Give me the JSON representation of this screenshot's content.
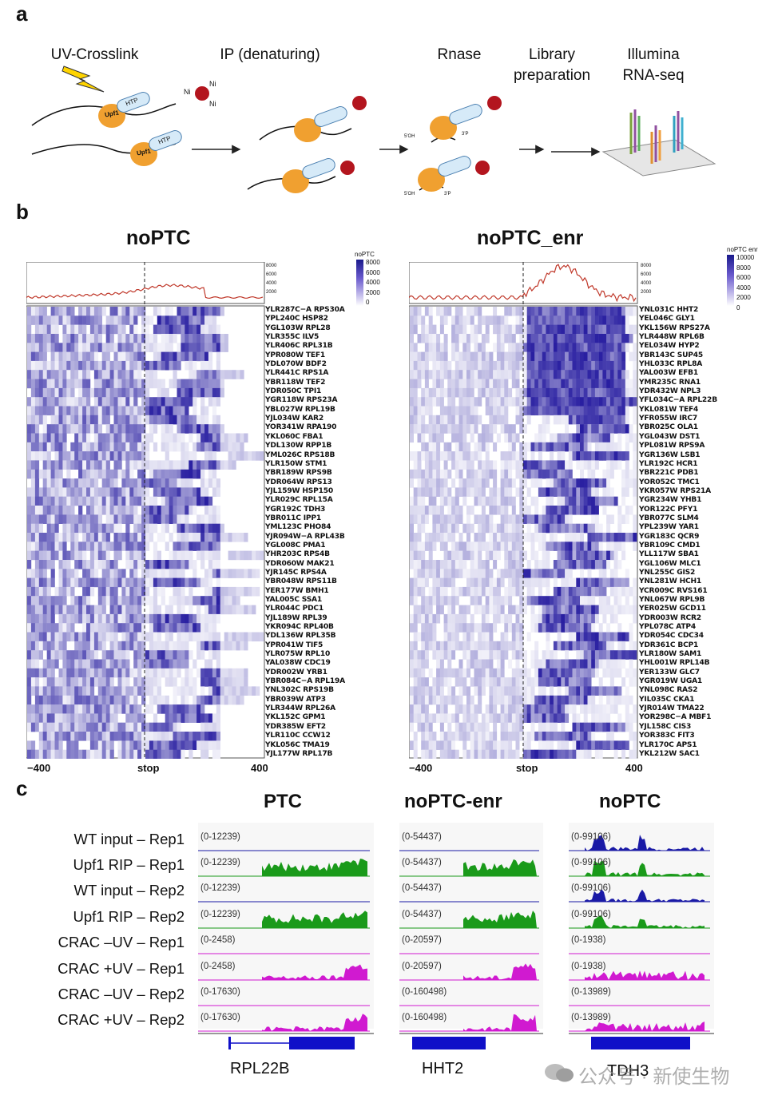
{
  "panels": {
    "a": "a",
    "b": "b",
    "c": "c"
  },
  "panel_a": {
    "steps": [
      "UV-Crosslink",
      "IP (denaturing)",
      "Rnase",
      "Library preparation",
      "Illumina RNA-seq"
    ],
    "labels": {
      "htp": "HTP",
      "upf1": "Upf1",
      "ni": "Ni",
      "oh": "5'OH",
      "p": "3'P"
    }
  },
  "panel_b": {
    "left": {
      "title": "noPTC",
      "legend_title": "noPTC",
      "legend_ticks": [
        "8000",
        "6000",
        "4000",
        "2000",
        "0"
      ],
      "profile_ticks": [
        "8000",
        "6000",
        "4000",
        "2000"
      ],
      "genes": [
        "YLR287C−A RPS30A",
        "YPL240C HSP82",
        "YGL103W RPL28",
        "YLR355C ILV5",
        "YLR406C RPL31B",
        "YPR080W TEF1",
        "YDL070W BDF2",
        "YLR441C RPS1A",
        "YBR118W TEF2",
        "YDR050C TPI1",
        "YGR118W RPS23A",
        "YBL027W RPL19B",
        "YJL034W KAR2",
        "YOR341W RPA190",
        "YKL060C FBA1",
        "YDL130W RPP1B",
        "YML026C RPS18B",
        "YLR150W STM1",
        "YBR189W RPS9B",
        "YDR064W RPS13",
        "YJL159W HSP150",
        "YLR029C RPL15A",
        "YGR192C TDH3",
        "YBR011C IPP1",
        "YML123C PHO84",
        "YJR094W−A RPL43B",
        "YGL008C PMA1",
        "YHR203C RPS4B",
        "YDR060W MAK21",
        "YJR145C RPS4A",
        "YBR048W RPS11B",
        "YER177W BMH1",
        "YAL005C SSA1",
        "YLR044C PDC1",
        "YJL189W RPL39",
        "YKR094C RPL40B",
        "YDL136W RPL35B",
        "YPR041W TIF5",
        "YLR075W RPL10",
        "YAL038W CDC19",
        "YDR002W YRB1",
        "YBR084C−A RPL19A",
        "YNL302C RPS19B",
        "YBR039W ATP3",
        "YLR344W RPL26A",
        "YKL152C GPM1",
        "YDR385W EFT2",
        "YLR110C CCW12",
        "YKL056C TMA19",
        "YJL177W RPL17B"
      ]
    },
    "right": {
      "title": "noPTC_enr",
      "legend_title": "noPTC enr",
      "legend_ticks": [
        "10000",
        "8000",
        "6000",
        "4000",
        "2000",
        "0"
      ],
      "profile_ticks": [
        "8000",
        "6000",
        "4000",
        "2000"
      ],
      "genes": [
        "YNL031C HHT2",
        "YEL046C GLY1",
        "YKL156W RPS27A",
        "YLR448W RPL6B",
        "YEL034W HYP2",
        "YBR143C SUP45",
        "YHL033C RPL8A",
        "YAL003W EFB1",
        "YMR235C RNA1",
        "YDR432W NPL3",
        "YFL034C−A RPL22B",
        "YKL081W TEF4",
        "YFR055W IRC7",
        "YBR025C OLA1",
        "YGL043W DST1",
        "YPL081W RPS9A",
        "YGR136W LSB1",
        "YLR192C HCR1",
        "YBR221C PDB1",
        "YOR052C TMC1",
        "YKR057W RPS21A",
        "YGR234W YHB1",
        "YOR122C PFY1",
        "YBR077C SLM4",
        "YPL239W YAR1",
        "YGR183C QCR9",
        "YBR109C CMD1",
        "YLL117W SBA1",
        "YGL106W MLC1",
        "YNL255C GIS2",
        "YNL281W HCH1",
        "YCR009C RVS161",
        "YNL067W RPL9B",
        "YER025W GCD11",
        "YDR003W RCR2",
        "YPL078C ATP4",
        "YDR054C CDC34",
        "YDR361C BCP1",
        "YLR180W SAM1",
        "YHL001W RPL14B",
        "YER133W GLC7",
        "YGR019W UGA1",
        "YNL098C RAS2",
        "YIL035C CKA1",
        "YJR014W TMA22",
        "YOR298C−A MBF1",
        "YJL158C CIS3",
        "YOR383C FIT3",
        "YLR170C APS1",
        "YKL212W SAC1"
      ]
    },
    "x_ticks": [
      "−400",
      "stop",
      "400"
    ]
  },
  "panel_c": {
    "columns": [
      "PTC",
      "noPTC-enr",
      "noPTC"
    ],
    "tracks": [
      "WT input – Rep1",
      "Upf1 RIP – Rep1",
      "WT input – Rep2",
      "Upf1 RIP – Rep2",
      "CRAC –UV – Rep1",
      "CRAC +UV – Rep1",
      "CRAC –UV – Rep2",
      "CRAC +UV – Rep2"
    ],
    "ranges": [
      [
        "(0-12239)",
        "(0-12239)",
        "(0-12239)",
        "(0-12239)",
        "(0-2458)",
        "(0-2458)",
        "(0-17630)",
        "(0-17630)"
      ],
      [
        "(0-54437)",
        "(0-54437)",
        "(0-54437)",
        "(0-54437)",
        "(0-20597)",
        "(0-20597)",
        "(0-160498)",
        "(0-160498)"
      ],
      [
        "(0-99106)",
        "(0-99106)",
        "(0-99106)",
        "(0-99106)",
        "(0-1938)",
        "(0-1938)",
        "(0-13989)",
        "(0-13989)"
      ]
    ],
    "genes": [
      "RPL22B",
      "HHT2",
      "TDH3"
    ],
    "colors": {
      "input": "#1a1aa6",
      "rip": "#1a9a1a",
      "crac": "#d01ad0",
      "gene": "#1010c8"
    }
  },
  "watermark": "公众号 · 新使生物"
}
